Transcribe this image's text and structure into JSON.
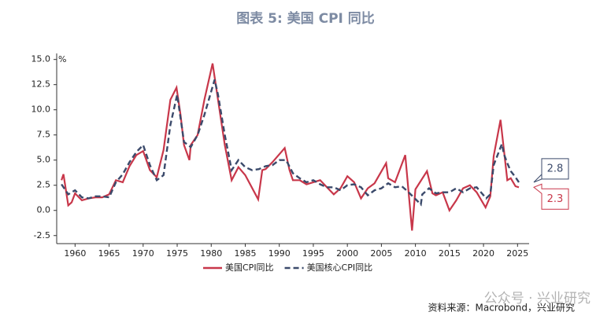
{
  "chart_data": {
    "type": "line",
    "title": "图表 5:  美国 CPI 同比",
    "y_unit": "%",
    "source": "资料来源：Macrobond，兴业研究",
    "watermark": "公众号 · 兴业研究",
    "xlim": [
      1957.3,
      2026.7
    ],
    "xticks": [
      1960,
      1965,
      1970,
      1975,
      1980,
      1985,
      1990,
      1995,
      2000,
      2005,
      2010,
      2015,
      2020,
      2025
    ],
    "ylim": [
      -3.3,
      15.6
    ],
    "yticks": [
      {
        "value": -2.5,
        "label": "-2.5"
      },
      {
        "value": 0,
        "label": "0.0"
      },
      {
        "value": 2.5,
        "label": "2.5"
      },
      {
        "value": 5,
        "label": "5.0"
      },
      {
        "value": 7.5,
        "label": "7.5"
      },
      {
        "value": 10,
        "label": "10.0"
      },
      {
        "value": 12.5,
        "label": "12.5"
      },
      {
        "value": 15,
        "label": "15.0"
      }
    ],
    "series": [
      {
        "name": "美国CPI同比",
        "color": "#c8374a",
        "dash": false,
        "last_label": "2.3",
        "x": [
          1958.0,
          1958.3,
          1959.0,
          1959.5,
          1960.0,
          1961.0,
          1962.0,
          1963.0,
          1964.0,
          1965.0,
          1966.0,
          1967.0,
          1968.0,
          1969.0,
          1970.0,
          1971.0,
          1972.0,
          1973.0,
          1974.0,
          1974.9,
          1975.5,
          1976.0,
          1976.8,
          1977.0,
          1978.0,
          1979.0,
          1980.2,
          1981.0,
          1982.0,
          1983.0,
          1984.0,
          1985.0,
          1986.9,
          1987.5,
          1988.0,
          1989.0,
          1990.8,
          1991.5,
          1992.0,
          1993.0,
          1994.0,
          1995.0,
          1996.0,
          1997.0,
          1998.0,
          1999.0,
          2000.0,
          2001.0,
          2002.0,
          2003.0,
          2004.0,
          2005.7,
          2006.0,
          2007.0,
          2008.5,
          2009.5,
          2010.0,
          2011.7,
          2012.5,
          2013.0,
          2014.0,
          2015.0,
          2016.0,
          2017.0,
          2018.0,
          2019.0,
          2020.3,
          2021.0,
          2021.5,
          2022.5,
          2023.0,
          2023.5,
          2024.0,
          2024.7,
          2025.2
        ],
        "values": [
          3.0,
          3.6,
          0.5,
          0.8,
          1.7,
          1.0,
          1.2,
          1.3,
          1.3,
          1.6,
          3.0,
          2.8,
          4.4,
          5.5,
          5.9,
          4.0,
          3.3,
          6.0,
          11.0,
          12.2,
          9.5,
          6.5,
          5.0,
          6.5,
          7.5,
          11.0,
          14.6,
          11.0,
          6.5,
          3.0,
          4.3,
          3.5,
          1.1,
          4.0,
          4.1,
          4.8,
          6.2,
          4.0,
          3.0,
          3.0,
          2.6,
          2.8,
          3.0,
          2.3,
          1.6,
          2.2,
          3.4,
          2.8,
          1.2,
          2.2,
          2.7,
          4.7,
          3.2,
          2.8,
          5.5,
          -2.0,
          2.1,
          3.9,
          1.7,
          1.5,
          1.8,
          0.0,
          1.0,
          2.2,
          2.5,
          1.8,
          0.3,
          1.4,
          5.4,
          9.0,
          6.0,
          3.0,
          3.2,
          2.4,
          2.3
        ]
      },
      {
        "name": "美国核心CPI同比",
        "color": "#3b4a6b",
        "dash": true,
        "last_label": "2.8",
        "x": [
          1958.0,
          1959.0,
          1960.0,
          1961.0,
          1962.0,
          1963.0,
          1964.0,
          1965.0,
          1966.0,
          1967.0,
          1968.0,
          1969.0,
          1970.0,
          1971.0,
          1972.0,
          1973.0,
          1974.0,
          1975.0,
          1976.0,
          1977.0,
          1978.0,
          1979.0,
          1980.5,
          1981.0,
          1982.0,
          1983.0,
          1984.0,
          1985.0,
          1986.0,
          1987.0,
          1988.0,
          1989.0,
          1990.0,
          1991.0,
          1992.0,
          1993.0,
          1994.0,
          1995.0,
          1996.0,
          1997.0,
          1998.0,
          1999.0,
          2000.0,
          2001.0,
          2002.0,
          2003.0,
          2004.0,
          2005.0,
          2006.0,
          2007.0,
          2008.0,
          2009.0,
          2010.8,
          2011.0,
          2012.0,
          2013.0,
          2014.0,
          2015.0,
          2016.0,
          2017.0,
          2018.0,
          2019.0,
          2020.4,
          2021.0,
          2021.5,
          2022.7,
          2023.0,
          2023.5,
          2024.0,
          2024.7,
          2025.2
        ],
        "values": [
          2.6,
          1.6,
          2.0,
          1.3,
          1.2,
          1.4,
          1.4,
          1.3,
          2.8,
          3.6,
          4.8,
          5.8,
          6.5,
          4.5,
          3.0,
          3.5,
          8.5,
          11.5,
          6.8,
          6.3,
          7.5,
          9.5,
          13.0,
          11.5,
          7.5,
          4.0,
          5.0,
          4.3,
          4.0,
          4.1,
          4.4,
          4.5,
          5.0,
          5.0,
          3.7,
          3.2,
          2.8,
          3.0,
          2.6,
          2.3,
          2.3,
          2.0,
          2.5,
          2.6,
          2.3,
          1.5,
          2.0,
          2.2,
          2.7,
          2.3,
          2.4,
          1.8,
          0.6,
          1.6,
          2.2,
          1.7,
          1.8,
          1.8,
          2.2,
          1.8,
          2.2,
          2.3,
          1.2,
          1.6,
          4.5,
          6.6,
          5.6,
          4.7,
          3.9,
          3.3,
          2.8
        ]
      }
    ]
  }
}
